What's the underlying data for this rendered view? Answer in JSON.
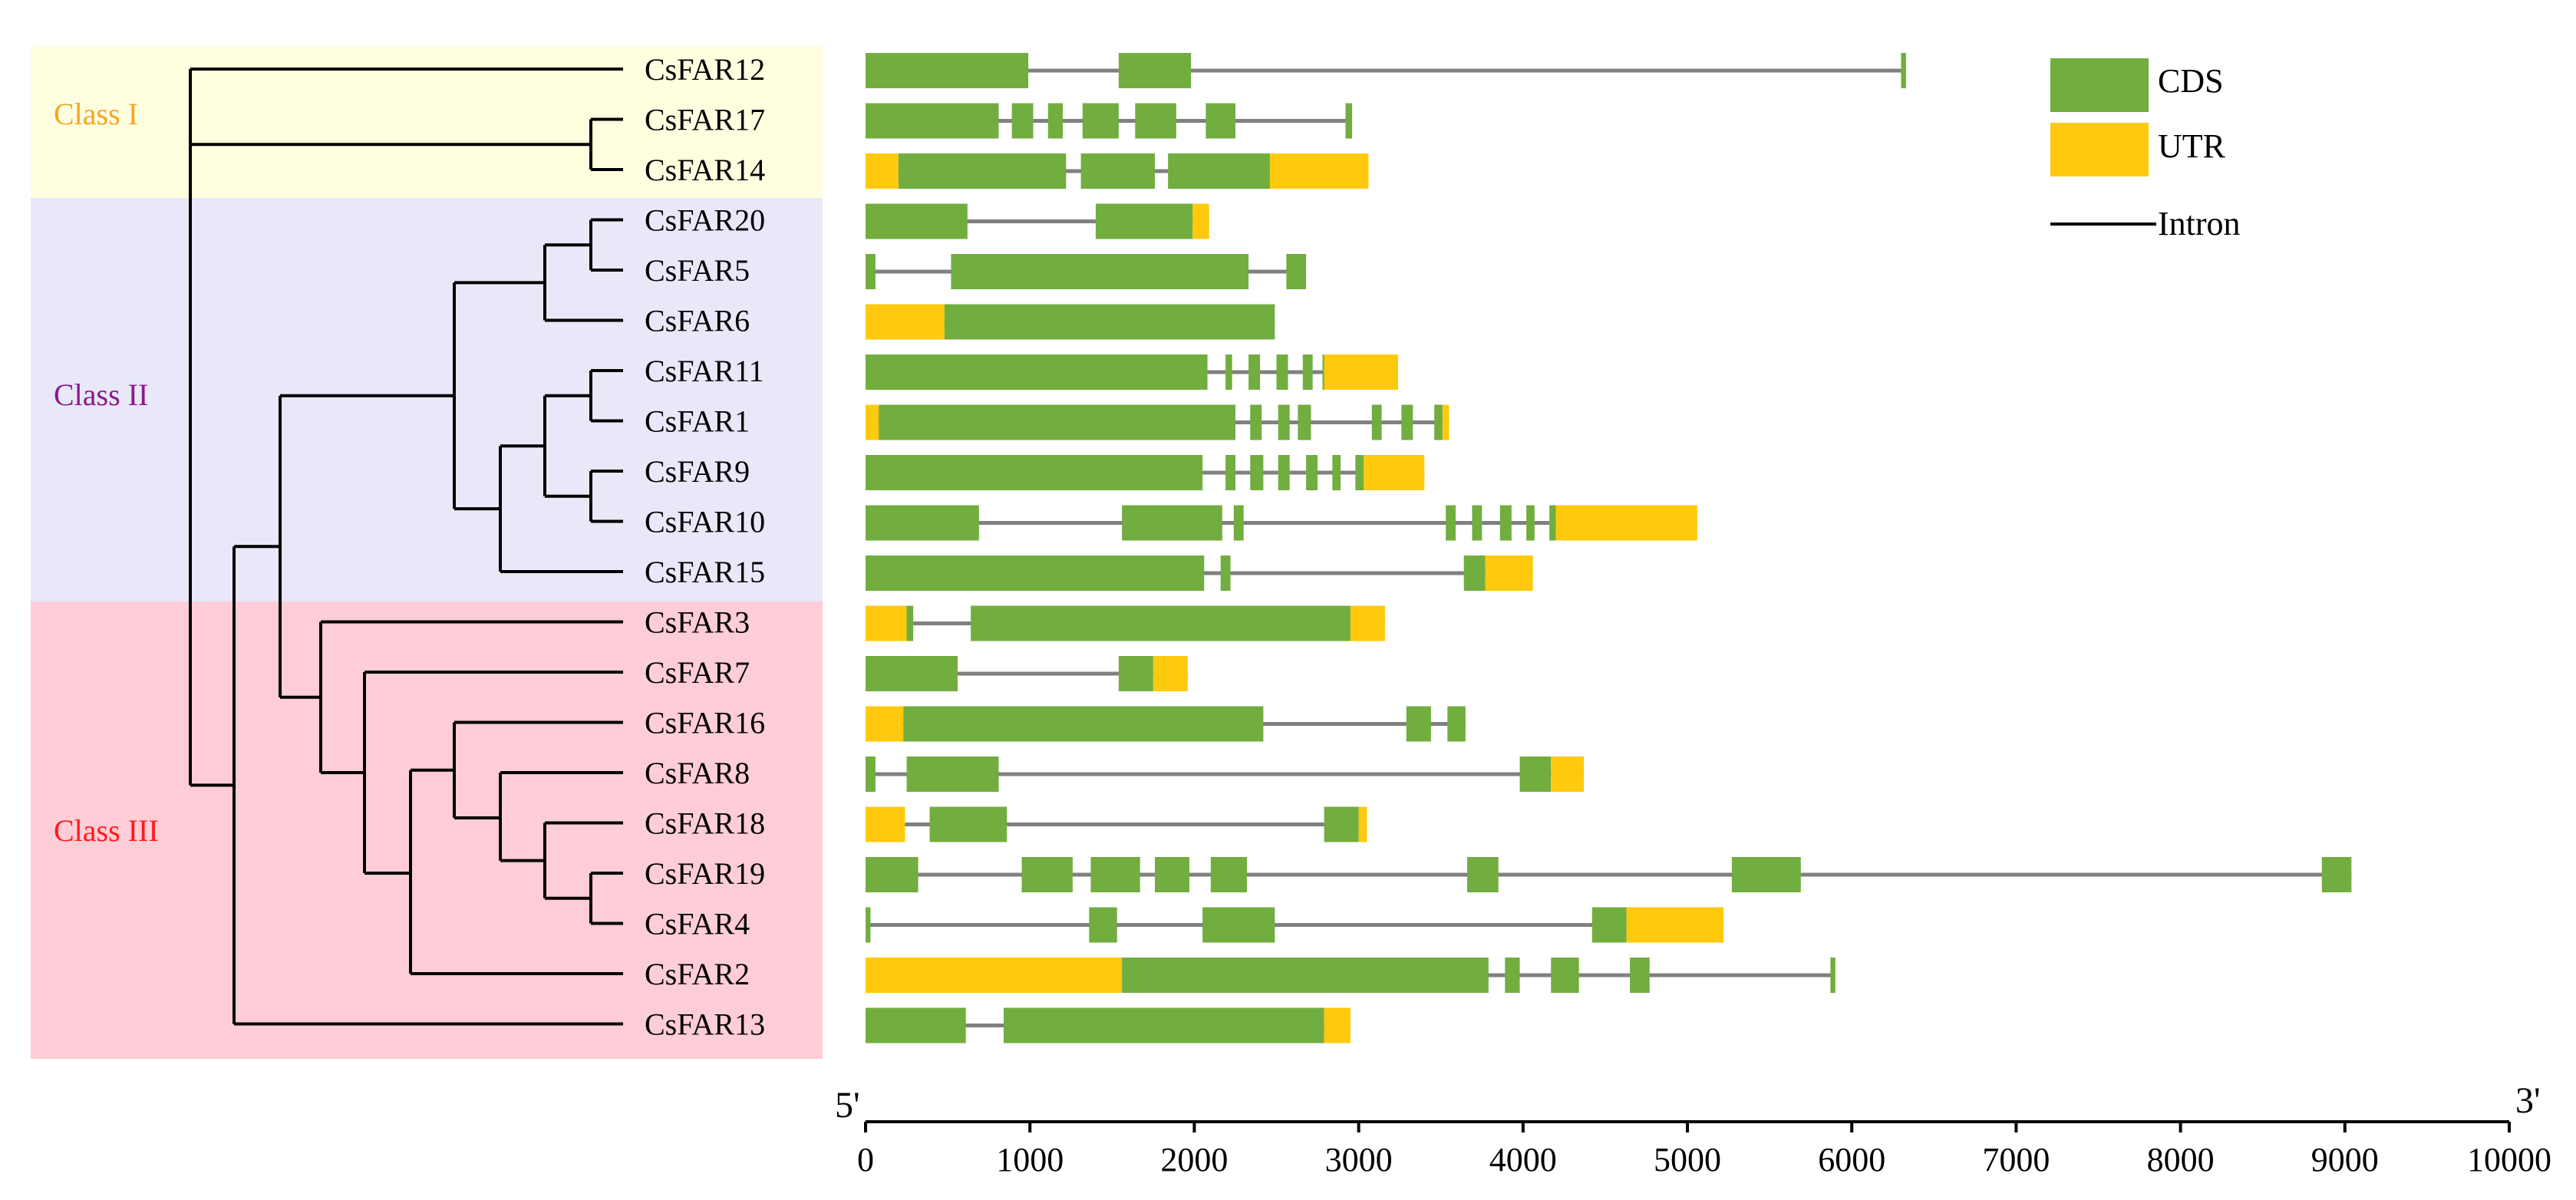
{
  "colors": {
    "cds": "#72ad3f",
    "utr": "#ffc90e",
    "intron": "#808080",
    "tree": "#000000",
    "class_I_bg": "#ffffe0",
    "class_II_bg": "#e8e8f8",
    "class_III_bg": "#ffcdd7",
    "class_I_text": "#f5a623",
    "class_II_text": "#8b1a8b",
    "class_III_text": "#ff1a1a"
  },
  "classes": [
    {
      "label": "Class I",
      "color_key": "class_I_text",
      "bg_key": "class_I_bg",
      "first_row": 0,
      "last_row": 2
    },
    {
      "label": "Class II",
      "color_key": "class_II_text",
      "bg_key": "class_II_bg",
      "first_row": 3,
      "last_row": 10
    },
    {
      "label": "Class III",
      "color_key": "class_III_text",
      "bg_key": "class_III_bg",
      "first_row": 11,
      "last_row": 19
    }
  ],
  "genes": [
    "CsFAR12",
    "CsFAR17",
    "CsFAR14",
    "CsFAR20",
    "CsFAR5",
    "CsFAR6",
    "CsFAR11",
    "CsFAR1",
    "CsFAR9",
    "CsFAR10",
    "CsFAR15",
    "CsFAR3",
    "CsFAR7",
    "CsFAR16",
    "CsFAR8",
    "CsFAR18",
    "CsFAR19",
    "CsFAR4",
    "CsFAR2",
    "CsFAR13"
  ],
  "legend": {
    "cds_label": "CDS",
    "utr_label": "UTR",
    "intron_label": "Intron"
  },
  "axis": {
    "left_label": "5'",
    "right_label": "3'",
    "min": 0,
    "max": 10000,
    "ticks": [
      0,
      1000,
      2000,
      3000,
      4000,
      5000,
      6000,
      7000,
      8000,
      9000,
      10000
    ]
  },
  "gene_structures": [
    {
      "length": 6330,
      "features": [
        [
          "C",
          0,
          990
        ],
        [
          "C",
          1540,
          1980
        ],
        [
          "C",
          6300,
          6330
        ]
      ]
    },
    {
      "length": 2960,
      "features": [
        [
          "C",
          0,
          810
        ],
        [
          "C",
          890,
          1020
        ],
        [
          "C",
          1110,
          1200
        ],
        [
          "C",
          1320,
          1540
        ],
        [
          "C",
          1640,
          1890
        ],
        [
          "C",
          2070,
          2250
        ],
        [
          "C",
          2920,
          2960
        ]
      ]
    },
    {
      "length": 3060,
      "features": [
        [
          "U",
          0,
          200
        ],
        [
          "C",
          200,
          1220
        ],
        [
          "C",
          1310,
          1760
        ],
        [
          "C",
          1840,
          2460
        ],
        [
          "U",
          2460,
          3060
        ]
      ]
    },
    {
      "length": 2090,
      "features": [
        [
          "C",
          0,
          620
        ],
        [
          "C",
          1400,
          1990
        ],
        [
          "U",
          1990,
          2090
        ]
      ]
    },
    {
      "length": 2680,
      "features": [
        [
          "C",
          0,
          60
        ],
        [
          "C",
          520,
          2330
        ],
        [
          "C",
          2560,
          2680
        ]
      ]
    },
    {
      "length": 2490,
      "features": [
        [
          "U",
          0,
          480
        ],
        [
          "C",
          480,
          2490
        ]
      ]
    },
    {
      "length": 3240,
      "features": [
        [
          "C",
          0,
          2080
        ],
        [
          "C",
          2190,
          2230
        ],
        [
          "C",
          2330,
          2400
        ],
        [
          "C",
          2500,
          2570
        ],
        [
          "C",
          2660,
          2720
        ],
        [
          "C",
          2780,
          2790
        ],
        [
          "U",
          2790,
          3240
        ]
      ]
    },
    {
      "length": 3550,
      "features": [
        [
          "U",
          0,
          80
        ],
        [
          "C",
          80,
          2250
        ],
        [
          "C",
          2340,
          2410
        ],
        [
          "C",
          2510,
          2580
        ],
        [
          "C",
          2630,
          2710
        ],
        [
          "C",
          3080,
          3140
        ],
        [
          "C",
          3260,
          3330
        ],
        [
          "C",
          3460,
          3510
        ],
        [
          "U",
          3510,
          3550
        ]
      ]
    },
    {
      "length": 3400,
      "features": [
        [
          "C",
          0,
          2050
        ],
        [
          "C",
          2190,
          2250
        ],
        [
          "C",
          2340,
          2420
        ],
        [
          "C",
          2510,
          2580
        ],
        [
          "C",
          2680,
          2750
        ],
        [
          "C",
          2840,
          2890
        ],
        [
          "C",
          2980,
          3030
        ],
        [
          "U",
          3030,
          3400
        ]
      ]
    },
    {
      "length": 5060,
      "features": [
        [
          "C",
          0,
          690
        ],
        [
          "C",
          1560,
          2170
        ],
        [
          "C",
          2240,
          2300
        ],
        [
          "C",
          3530,
          3590
        ],
        [
          "C",
          3690,
          3750
        ],
        [
          "C",
          3860,
          3930
        ],
        [
          "C",
          4020,
          4070
        ],
        [
          "C",
          4160,
          4200
        ],
        [
          "U",
          4200,
          5060
        ]
      ]
    },
    {
      "length": 4060,
      "features": [
        [
          "C",
          0,
          2060
        ],
        [
          "C",
          2160,
          2220
        ],
        [
          "C",
          3640,
          3770
        ],
        [
          "U",
          3770,
          4060
        ]
      ]
    },
    {
      "length": 3160,
      "features": [
        [
          "U",
          0,
          250
        ],
        [
          "C",
          250,
          290
        ],
        [
          "C",
          640,
          2950
        ],
        [
          "U",
          2950,
          3160
        ]
      ]
    },
    {
      "length": 1960,
      "features": [
        [
          "C",
          0,
          560
        ],
        [
          "C",
          1540,
          1750
        ],
        [
          "U",
          1750,
          1960
        ]
      ]
    },
    {
      "length": 3650,
      "features": [
        [
          "U",
          0,
          230
        ],
        [
          "C",
          230,
          2420
        ],
        [
          "C",
          3290,
          3440
        ],
        [
          "C",
          3540,
          3650
        ]
      ]
    },
    {
      "length": 4370,
      "features": [
        [
          "C",
          0,
          60
        ],
        [
          "C",
          250,
          810
        ],
        [
          "C",
          3980,
          4170
        ],
        [
          "U",
          4170,
          4370
        ]
      ]
    },
    {
      "length": 3050,
      "features": [
        [
          "U",
          0,
          240
        ],
        [
          "C",
          390,
          860
        ],
        [
          "C",
          2790,
          3000
        ],
        [
          "U",
          3000,
          3050
        ]
      ]
    },
    {
      "length": 9040,
      "features": [
        [
          "C",
          0,
          320
        ],
        [
          "C",
          950,
          1260
        ],
        [
          "C",
          1370,
          1670
        ],
        [
          "C",
          1760,
          1970
        ],
        [
          "C",
          2100,
          2320
        ],
        [
          "C",
          3660,
          3850
        ],
        [
          "C",
          5270,
          5690
        ],
        [
          "C",
          8860,
          9040
        ]
      ]
    },
    {
      "length": 5220,
      "features": [
        [
          "C",
          0,
          30
        ],
        [
          "C",
          1360,
          1530
        ],
        [
          "C",
          2050,
          2490
        ],
        [
          "C",
          4420,
          4630
        ],
        [
          "U",
          4630,
          5220
        ]
      ]
    },
    {
      "length": 5900,
      "features": [
        [
          "U",
          0,
          1560
        ],
        [
          "C",
          1560,
          3790
        ],
        [
          "C",
          3890,
          3980
        ],
        [
          "C",
          4170,
          4340
        ],
        [
          "C",
          4650,
          4770
        ],
        [
          "C",
          5870,
          5900
        ]
      ]
    },
    {
      "length": 2950,
      "features": [
        [
          "C",
          0,
          610
        ],
        [
          "C",
          840,
          2790
        ],
        [
          "U",
          2790,
          2950
        ]
      ]
    }
  ]
}
